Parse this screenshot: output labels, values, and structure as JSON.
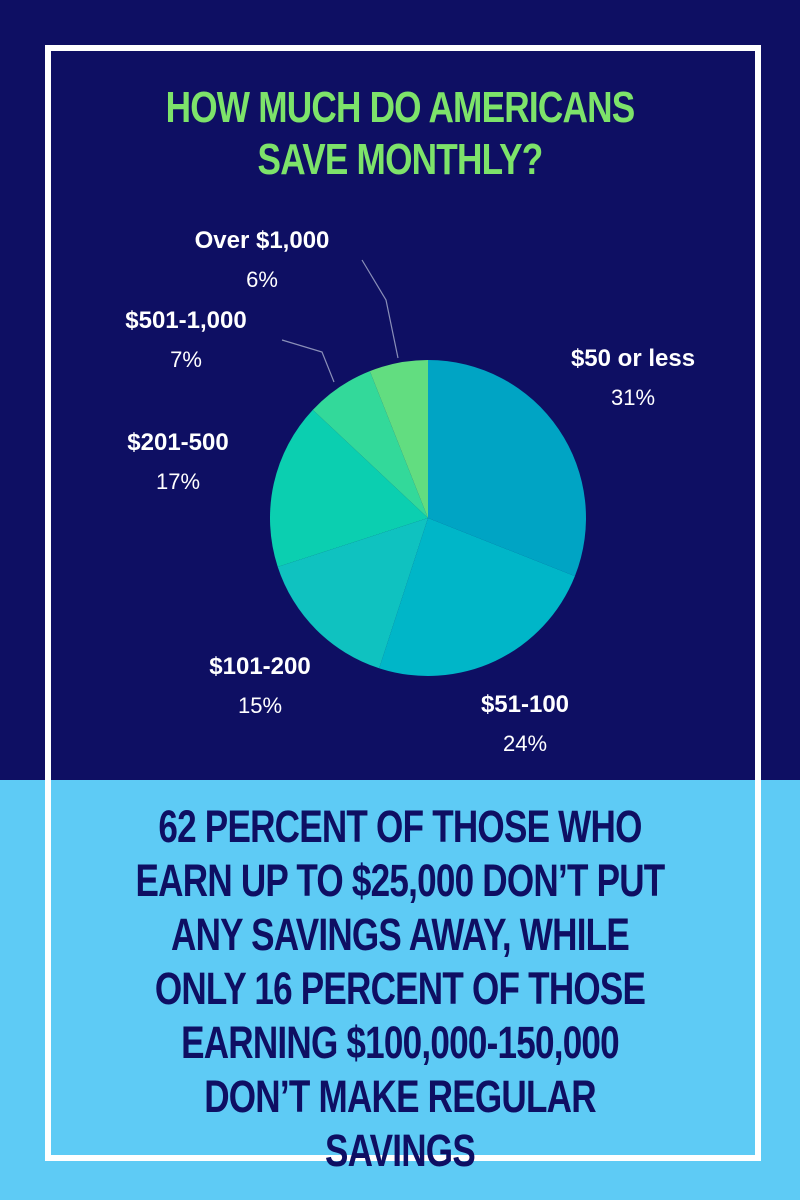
{
  "title": "HOW MUCH DO AMERICANS SAVE MONTHLY?",
  "caption": "62 PERCENT OF THOSE WHO EARN UP TO $25,000 DON’T PUT ANY SAVINGS AWAY, WHILE ONLY 16 PERCENT OF THOSE EARNING $100,000-150,000 DON’T MAKE REGULAR SAVINGS",
  "colors": {
    "background_top": "#0e0f63",
    "background_bottom": "#5ecbf5",
    "title": "#7de36a",
    "caption": "#0e0f63",
    "frame": "#ffffff"
  },
  "chart_data": {
    "type": "pie",
    "title": "HOW MUCH DO AMERICANS SAVE MONTHLY?",
    "categories": [
      "$50 or less",
      "$51-100",
      "$101-200",
      "$201-500",
      "$501-1,000",
      "Over $1,000"
    ],
    "values": [
      31,
      24,
      15,
      17,
      7,
      6
    ],
    "labels": [
      "31%",
      "24%",
      "15%",
      "17%",
      "7%",
      "6%"
    ],
    "colors": [
      "#00a4c4",
      "#00b6c8",
      "#0fc2c0",
      "#0bcfb0",
      "#33d99a",
      "#62dd80"
    ],
    "start_angle": "12 o'clock",
    "direction": "clockwise",
    "legend": "none"
  }
}
